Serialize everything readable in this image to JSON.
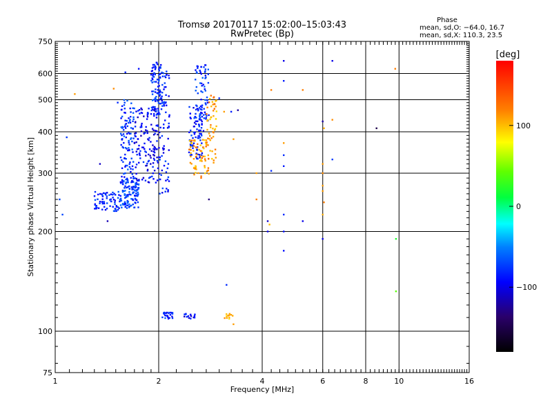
{
  "chart_data": {
    "type": "scatter",
    "title": "Tromsø 20170117 15:02:00–15:03:43",
    "subtitle": "RwPretec (Bp)",
    "xlabel": "Frequency [MHz]",
    "ylabel": "Stationary phase Virtual Height [km]",
    "x_scale": "log",
    "y_scale": "log",
    "xlim": [
      1,
      16
    ],
    "ylim": [
      75,
      750
    ],
    "x_ticks": [
      1,
      2,
      4,
      6,
      8,
      10,
      16
    ],
    "x_tick_labels": [
      "1",
      "2",
      "4",
      "6",
      "8",
      "10",
      "16"
    ],
    "y_ticks": [
      75,
      100,
      200,
      300,
      400,
      500,
      600,
      750
    ],
    "y_tick_labels": [
      "75",
      "100",
      "200",
      "300",
      "400",
      "500",
      "600",
      "750"
    ],
    "grid": true,
    "phase_info": {
      "heading": "Phase",
      "line1": "mean, sd,O: −64.0, 16.7",
      "line2": "mean, sd,X: 110.3, 23.5"
    },
    "colorbar": {
      "label": "[deg]",
      "range": [
        -180,
        180
      ],
      "ticks": [
        100,
        0,
        -100
      ],
      "tick_labels": [
        "100",
        "0",
        "−100"
      ]
    },
    "clusters": [
      {
        "f": [
          1.55,
          1.75
        ],
        "h": [
          235,
          290
        ],
        "phase": -75,
        "count": 120
      },
      {
        "f": [
          1.3,
          1.55
        ],
        "h": [
          230,
          265
        ],
        "phase": -80,
        "count": 70
      },
      {
        "f": [
          1.55,
          1.7
        ],
        "h": [
          280,
          500
        ],
        "phase": -78,
        "count": 110
      },
      {
        "f": [
          1.7,
          2.0
        ],
        "h": [
          280,
          480
        ],
        "phase": -95,
        "count": 140
      },
      {
        "f": [
          1.9,
          2.05
        ],
        "h": [
          450,
          650
        ],
        "phase": -80,
        "count": 90
      },
      {
        "f": [
          2.0,
          2.15
        ],
        "h": [
          260,
          620
        ],
        "phase": -85,
        "count": 80
      },
      {
        "f": [
          2.45,
          2.7
        ],
        "h": [
          330,
          480
        ],
        "phase": -85,
        "count": 90
      },
      {
        "f": [
          2.55,
          2.8
        ],
        "h": [
          430,
          640
        ],
        "phase": -80,
        "count": 70
      },
      {
        "f": [
          2.45,
          2.8
        ],
        "h": [
          290,
          380
        ],
        "phase": 110,
        "count": 70
      },
      {
        "f": [
          2.75,
          2.95
        ],
        "h": [
          320,
          520
        ],
        "phase": 110,
        "count": 50
      },
      {
        "f": [
          2.05,
          2.2
        ],
        "h": [
          109,
          114
        ],
        "phase": -80,
        "count": 25
      },
      {
        "f": [
          2.35,
          2.55
        ],
        "h": [
          109,
          113
        ],
        "phase": -95,
        "count": 15
      },
      {
        "f": [
          3.05,
          3.3
        ],
        "h": [
          109,
          113
        ],
        "phase": 105,
        "count": 12
      }
    ],
    "points": [
      {
        "f": 1.03,
        "h": 250,
        "phase": -70
      },
      {
        "f": 1.05,
        "h": 225,
        "phase": -70
      },
      {
        "f": 1.08,
        "h": 385,
        "phase": -75
      },
      {
        "f": 1.14,
        "h": 520,
        "phase": 110
      },
      {
        "f": 1.35,
        "h": 320,
        "phase": -110
      },
      {
        "f": 1.42,
        "h": 215,
        "phase": -115
      },
      {
        "f": 1.48,
        "h": 540,
        "phase": 115
      },
      {
        "f": 1.52,
        "h": 490,
        "phase": -80
      },
      {
        "f": 1.6,
        "h": 605,
        "phase": -80
      },
      {
        "f": 1.75,
        "h": 620,
        "phase": -90
      },
      {
        "f": 2.8,
        "h": 250,
        "phase": -130
      },
      {
        "f": 3.0,
        "h": 505,
        "phase": -80
      },
      {
        "f": 3.1,
        "h": 460,
        "phase": 110
      },
      {
        "f": 3.25,
        "h": 460,
        "phase": -85
      },
      {
        "f": 3.3,
        "h": 380,
        "phase": 110
      },
      {
        "f": 3.4,
        "h": 465,
        "phase": -120
      },
      {
        "f": 3.15,
        "h": 138,
        "phase": -80
      },
      {
        "f": 3.3,
        "h": 105,
        "phase": 110
      },
      {
        "f": 3.85,
        "h": 300,
        "phase": 110
      },
      {
        "f": 3.85,
        "h": 250,
        "phase": 120
      },
      {
        "f": 4.15,
        "h": 215,
        "phase": -110
      },
      {
        "f": 4.15,
        "h": 200,
        "phase": -100
      },
      {
        "f": 4.2,
        "h": 210,
        "phase": 100
      },
      {
        "f": 4.25,
        "h": 305,
        "phase": -80
      },
      {
        "f": 4.25,
        "h": 535,
        "phase": 120
      },
      {
        "f": 4.62,
        "h": 655,
        "phase": -100
      },
      {
        "f": 4.62,
        "h": 570,
        "phase": -85
      },
      {
        "f": 4.62,
        "h": 370,
        "phase": 110
      },
      {
        "f": 4.62,
        "h": 340,
        "phase": -80
      },
      {
        "f": 4.62,
        "h": 315,
        "phase": -85
      },
      {
        "f": 4.62,
        "h": 225,
        "phase": -80
      },
      {
        "f": 4.62,
        "h": 200,
        "phase": -90
      },
      {
        "f": 4.62,
        "h": 175,
        "phase": -90
      },
      {
        "f": 5.25,
        "h": 535,
        "phase": 120
      },
      {
        "f": 5.25,
        "h": 215,
        "phase": -100
      },
      {
        "f": 6.0,
        "h": 430,
        "phase": -120
      },
      {
        "f": 6.0,
        "h": 320,
        "phase": 110
      },
      {
        "f": 6.0,
        "h": 300,
        "phase": 115
      },
      {
        "f": 6.0,
        "h": 275,
        "phase": 110
      },
      {
        "f": 6.0,
        "h": 265,
        "phase": 110
      },
      {
        "f": 6.0,
        "h": 225,
        "phase": 105
      },
      {
        "f": 6.0,
        "h": 190,
        "phase": -100
      },
      {
        "f": 6.05,
        "h": 410,
        "phase": 105
      },
      {
        "f": 6.05,
        "h": 245,
        "phase": 120
      },
      {
        "f": 6.4,
        "h": 655,
        "phase": -100
      },
      {
        "f": 6.4,
        "h": 435,
        "phase": 115
      },
      {
        "f": 6.4,
        "h": 330,
        "phase": -75
      },
      {
        "f": 8.6,
        "h": 410,
        "phase": -150
      },
      {
        "f": 9.75,
        "h": 620,
        "phase": 120
      },
      {
        "f": 9.8,
        "h": 190,
        "phase": 20
      },
      {
        "f": 9.8,
        "h": 132,
        "phase": 40
      }
    ]
  }
}
